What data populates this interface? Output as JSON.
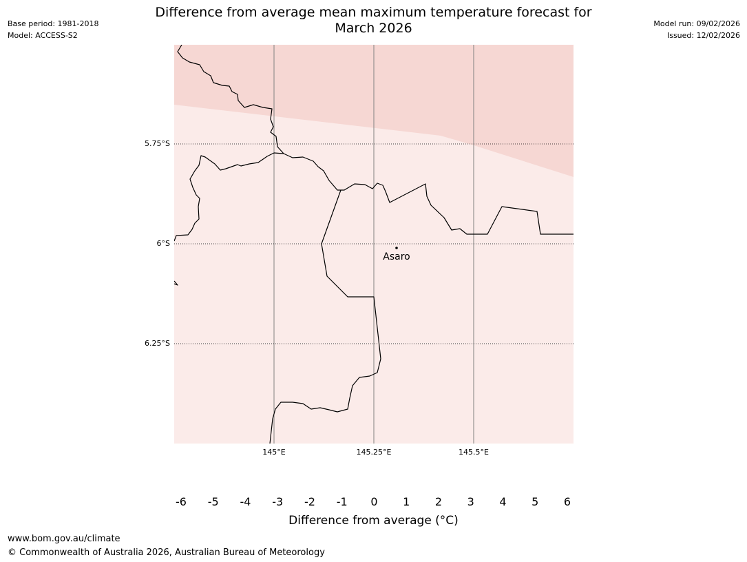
{
  "header": {
    "title_line1": "Difference from average mean maximum temperature forecast for",
    "title_line2": "March 2026",
    "base_period": "Base period: 1981-2018",
    "model": "Model: ACCESS-S2",
    "model_run": "Model run: 09/02/2026",
    "issued": "Issued: 12/02/2026"
  },
  "map": {
    "lat_labels": [
      "5.75°S",
      "6°S",
      "6.25°S"
    ],
    "lon_labels": [
      "145°E",
      "145.25°E",
      "145.5°E"
    ],
    "place_label": "Asaro",
    "colors": {
      "warm_light": "#fbebe9",
      "warm_mid": "#f6d7d3",
      "border": "#000000",
      "grid": "#808080"
    }
  },
  "colorbar": {
    "label": "Difference from average (°C)",
    "ticks": [
      "-6",
      "-5",
      "-4",
      "-3",
      "-2",
      "-1",
      "0",
      "1",
      "2",
      "3",
      "4",
      "5",
      "6"
    ],
    "colors": [
      "#1f2f8a",
      "#283fb8",
      "#3250df",
      "#5b71e6",
      "#8797ec",
      "#c0c8f5",
      "#e9ebfb",
      "#fbebe9",
      "#f6d7d3",
      "#eeaea7",
      "#e6807a",
      "#db4a3e",
      "#b02820",
      "#7a1a14"
    ]
  },
  "footer": {
    "url": "www.bom.gov.au/climate",
    "copyright": "© Commonwealth of Australia 2026, Australian Bureau of Meteorology"
  }
}
